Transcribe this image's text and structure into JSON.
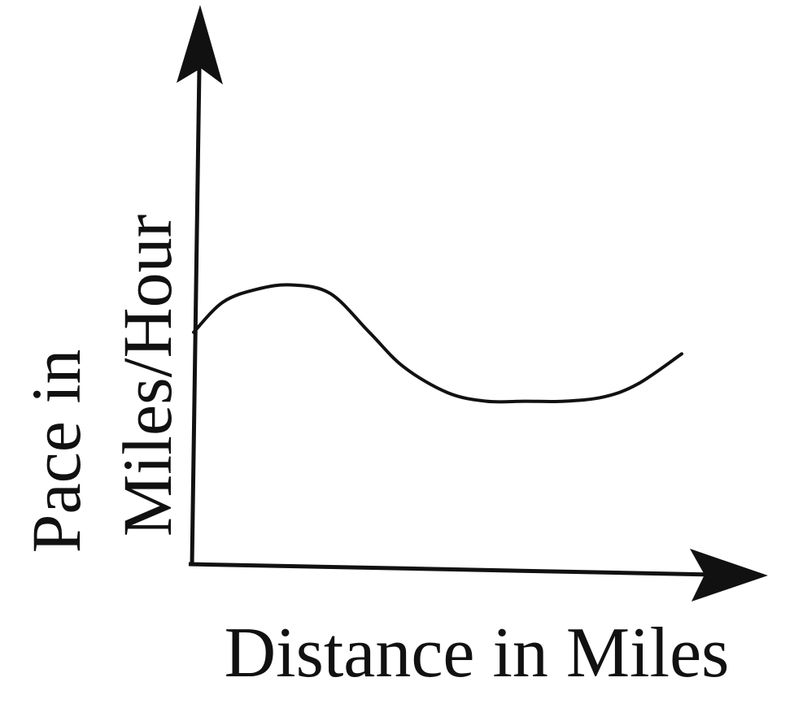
{
  "chart_data": {
    "type": "line",
    "xlabel": "Distance in Miles",
    "ylabel_line1": "Pace in",
    "ylabel_line2": "Miles/Hour",
    "grid": false,
    "axis_ticks": false,
    "xlim": [
      0,
      10
    ],
    "ylim": [
      0,
      10
    ],
    "series": [
      {
        "x": [
          0,
          0.6,
          1.3,
          2.0,
          2.8,
          3.6,
          4.3,
          5.2,
          6.0,
          6.8,
          7.6,
          8.4,
          9.1,
          10.0
        ],
        "y": [
          5.4,
          6.1,
          6.4,
          6.5,
          6.3,
          5.4,
          4.6,
          4.0,
          3.8,
          3.8,
          3.8,
          3.9,
          4.2,
          4.9
        ]
      }
    ]
  }
}
